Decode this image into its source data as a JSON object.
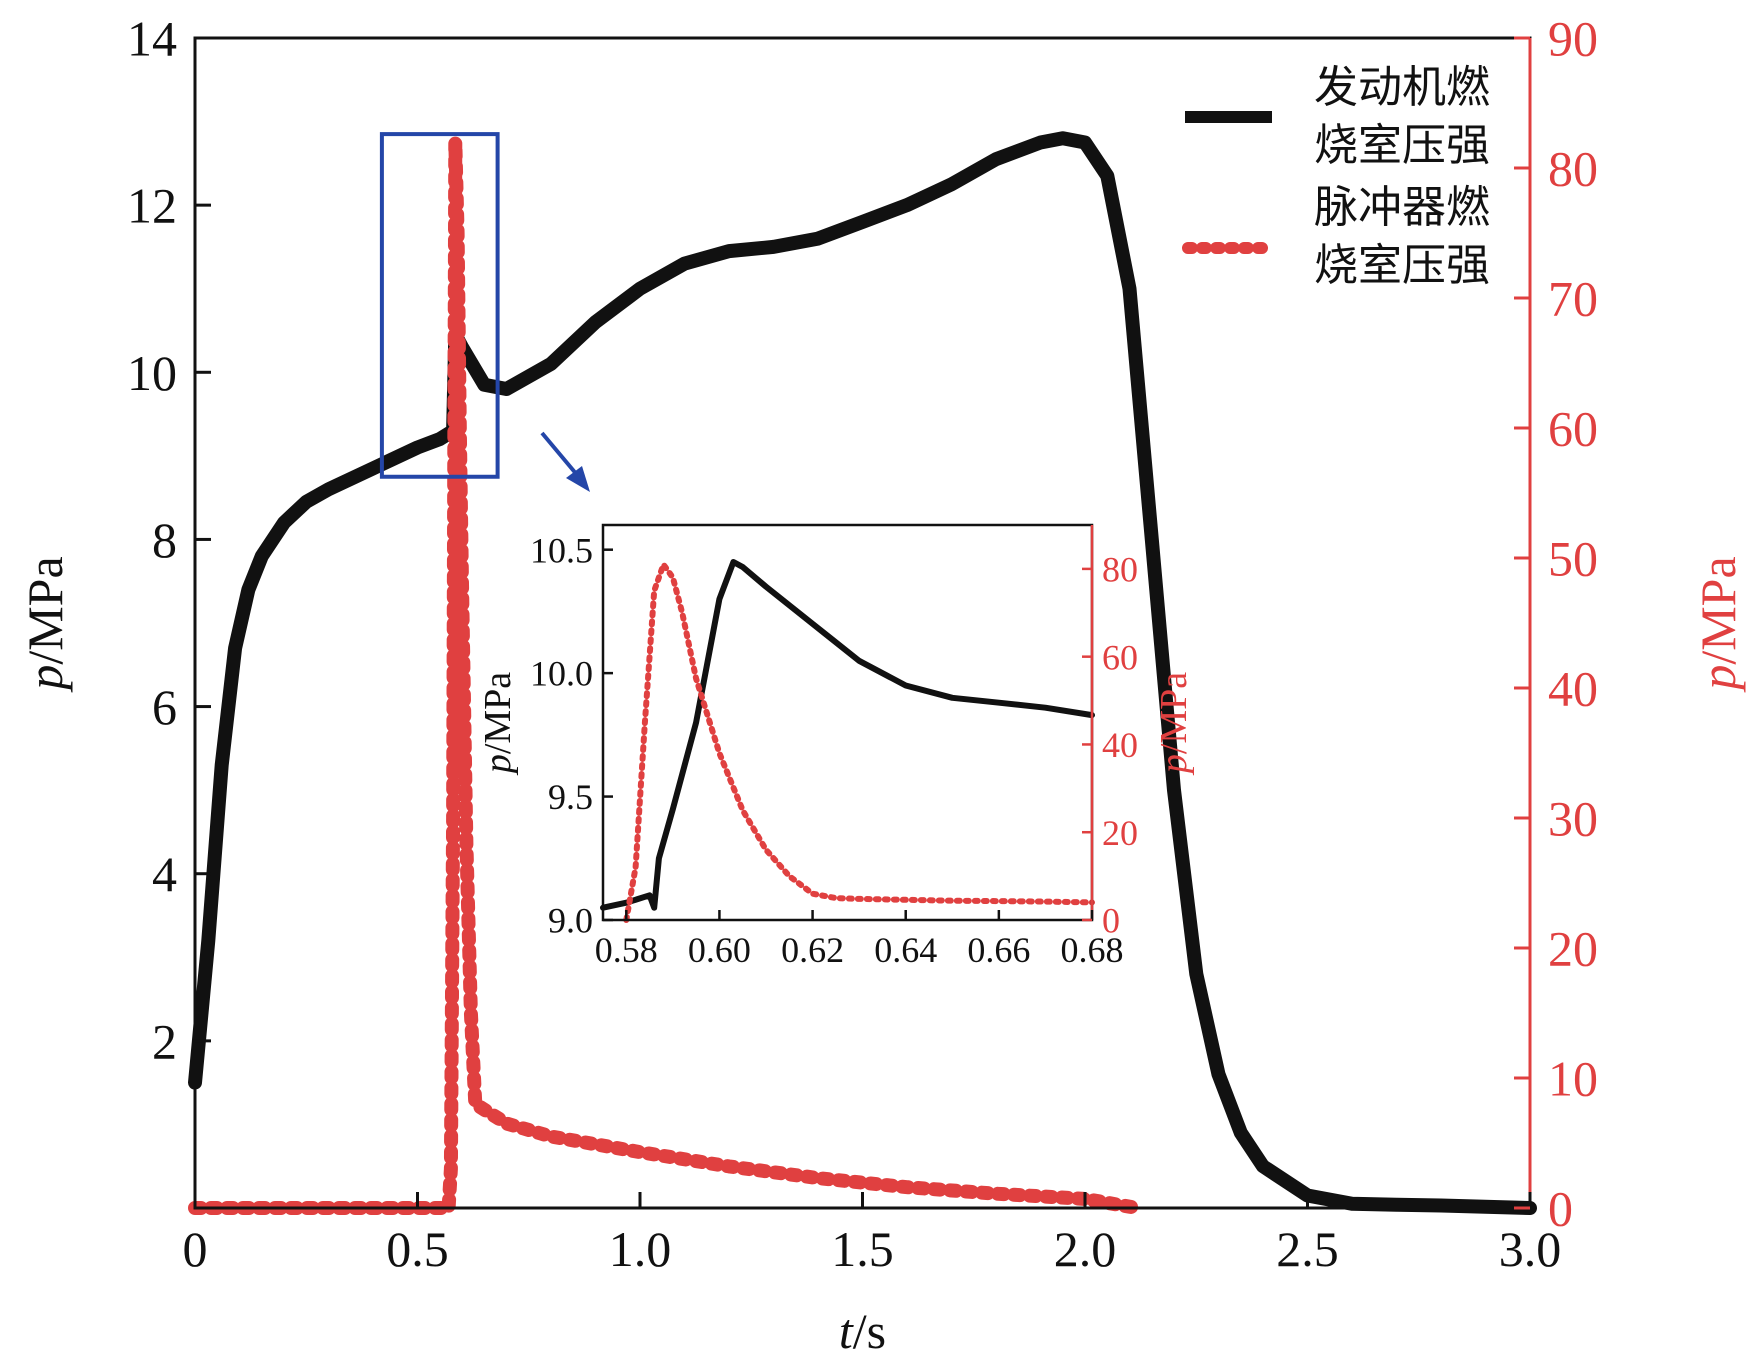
{
  "chart_data": [
    {
      "type": "line",
      "xlabel_italic": "t",
      "xlabel_rest": "/s",
      "ylabel_italic": "p",
      "ylabel_rest": "/MPa",
      "y2label_italic": "p",
      "y2label_rest": "/MPa",
      "xlim": [
        0,
        3.0
      ],
      "ylim": [
        0,
        14
      ],
      "y2lim": [
        0,
        90
      ],
      "xticks": [
        "0",
        "0.5",
        "1.0",
        "1.5",
        "2.0",
        "2.5",
        "3.0"
      ],
      "xtick_values": [
        0,
        0.5,
        1.0,
        1.5,
        2.0,
        2.5,
        3.0
      ],
      "yticks": [
        "2",
        "4",
        "6",
        "8",
        "10",
        "12",
        "14"
      ],
      "ytick_values": [
        2,
        4,
        6,
        8,
        10,
        12,
        14
      ],
      "y2ticks": [
        "0",
        "10",
        "20",
        "30",
        "40",
        "50",
        "60",
        "70",
        "80",
        "90"
      ],
      "y2tick_values": [
        0,
        10,
        20,
        30,
        40,
        50,
        60,
        70,
        80,
        90
      ],
      "grid": false,
      "legend_position": "top-right",
      "series": [
        {
          "name": "发动机燃烧室压强",
          "name_lines": [
            "发动机燃",
            "烧室压强"
          ],
          "axis": "left",
          "color": "#111111",
          "style": "solid",
          "x": [
            0.0,
            0.03,
            0.06,
            0.09,
            0.12,
            0.15,
            0.2,
            0.25,
            0.3,
            0.4,
            0.5,
            0.55,
            0.58,
            0.585,
            0.6,
            0.65,
            0.7,
            0.8,
            0.9,
            1.0,
            1.1,
            1.2,
            1.3,
            1.4,
            1.5,
            1.6,
            1.7,
            1.8,
            1.9,
            1.95,
            2.0,
            2.05,
            2.1,
            2.15,
            2.2,
            2.25,
            2.3,
            2.35,
            2.4,
            2.5,
            2.6,
            2.7,
            2.8,
            3.0
          ],
          "y": [
            1.5,
            3.2,
            5.3,
            6.7,
            7.4,
            7.8,
            8.2,
            8.45,
            8.6,
            8.85,
            9.1,
            9.2,
            9.3,
            10.45,
            10.3,
            9.85,
            9.8,
            10.1,
            10.6,
            11.0,
            11.3,
            11.45,
            11.5,
            11.6,
            11.8,
            12.0,
            12.25,
            12.55,
            12.75,
            12.8,
            12.75,
            12.35,
            11.0,
            8.0,
            5.0,
            2.8,
            1.6,
            0.9,
            0.5,
            0.15,
            0.05,
            0.04,
            0.03,
            0.0
          ]
        },
        {
          "name": "脉冲器燃烧室压强",
          "name_lines": [
            "脉冲器燃",
            "烧室压强"
          ],
          "axis": "right",
          "color": "#e04040",
          "style": "dotted",
          "x": [
            0.0,
            0.57,
            0.575,
            0.58,
            0.585,
            0.59,
            0.595,
            0.6,
            0.605,
            0.61,
            0.62,
            0.63,
            0.7,
            0.8,
            1.0,
            1.2,
            1.4,
            1.6,
            1.8,
            2.0,
            2.05,
            2.1,
            2.12
          ],
          "y": [
            0.0,
            0.0,
            3.0,
            30.0,
            82.0,
            75.0,
            60.0,
            48.0,
            38.0,
            28.0,
            15.0,
            8.0,
            6.5,
            5.5,
            4.3,
            3.2,
            2.3,
            1.6,
            1.1,
            0.7,
            0.4,
            0.1,
            0.0
          ]
        }
      ],
      "highlight_box": {
        "x": [
          0.42,
          0.68
        ],
        "y": [
          8.75,
          12.85
        ]
      }
    },
    {
      "type": "line",
      "inset": true,
      "ylabel_italic": "p",
      "ylabel_rest": "/MPa",
      "y2label_italic": "p",
      "y2label_rest": "/MPa",
      "xlim": [
        0.575,
        0.68
      ],
      "ylim": [
        9.0,
        10.6
      ],
      "y2lim": [
        0,
        90
      ],
      "xticks": [
        "0.58",
        "0.60",
        "0.62",
        "0.64",
        "0.66",
        "0.68"
      ],
      "xtick_values": [
        0.58,
        0.6,
        0.62,
        0.64,
        0.66,
        0.68
      ],
      "yticks": [
        "9.0",
        "9.5",
        "10.0",
        "10.5"
      ],
      "ytick_values": [
        9.0,
        9.5,
        10.0,
        10.5
      ],
      "y2ticks": [
        "0",
        "20",
        "40",
        "60",
        "80"
      ],
      "y2tick_values": [
        0,
        20,
        40,
        60,
        80
      ],
      "grid": false,
      "series": [
        {
          "axis": "left",
          "color": "#111111",
          "style": "solid",
          "x": [
            0.575,
            0.58,
            0.585,
            0.586,
            0.587,
            0.59,
            0.595,
            0.6,
            0.603,
            0.605,
            0.61,
            0.62,
            0.63,
            0.64,
            0.65,
            0.66,
            0.67,
            0.68
          ],
          "y": [
            9.05,
            9.07,
            9.1,
            9.05,
            9.25,
            9.45,
            9.8,
            10.3,
            10.45,
            10.43,
            10.35,
            10.2,
            10.05,
            9.95,
            9.9,
            9.88,
            9.86,
            9.83
          ]
        },
        {
          "axis": "right",
          "color": "#e04040",
          "style": "dotted",
          "x": [
            0.58,
            0.582,
            0.584,
            0.586,
            0.588,
            0.59,
            0.592,
            0.595,
            0.6,
            0.605,
            0.61,
            0.615,
            0.62,
            0.625,
            0.63,
            0.64,
            0.65,
            0.66,
            0.67,
            0.68
          ],
          "y": [
            0,
            12,
            45,
            75,
            81,
            78,
            70,
            55,
            38,
            25,
            16,
            10,
            6,
            5,
            4.8,
            4.6,
            4.4,
            4.3,
            4.2,
            4.0
          ]
        }
      ]
    }
  ]
}
